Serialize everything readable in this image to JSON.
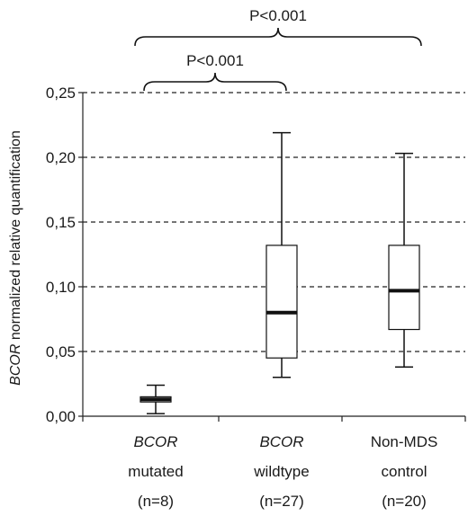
{
  "chart_data": {
    "type": "boxplot",
    "ylabel_italic": "BCOR",
    "ylabel_rest": " normalized relative quantification",
    "ylim": [
      0,
      0.25
    ],
    "yticks": [
      0,
      0.05,
      0.1,
      0.15,
      0.2,
      0.25
    ],
    "ytick_labels": [
      "0,00",
      "0,05",
      "0,10",
      "0,15",
      "0,20",
      "0,25"
    ],
    "grid": "dashed horizontal",
    "categories": [
      {
        "line1": "BCOR",
        "line1_italic": true,
        "line2": "mutated",
        "line3": "(n=8)"
      },
      {
        "line1": "BCOR",
        "line1_italic": true,
        "line2": "wildtype",
        "line3": "(n=27)"
      },
      {
        "line1": "Non-MDS",
        "line1_italic": false,
        "line2": "control",
        "line3": "(n=20)"
      }
    ],
    "boxes": [
      {
        "min": 0.002,
        "q1": 0.011,
        "median": 0.013,
        "q3": 0.015,
        "max": 0.024
      },
      {
        "min": 0.03,
        "q1": 0.045,
        "median": 0.08,
        "q3": 0.132,
        "max": 0.219
      },
      {
        "min": 0.038,
        "q1": 0.067,
        "median": 0.097,
        "q3": 0.132,
        "max": 0.203
      }
    ],
    "annotations": [
      {
        "label": "P<0.001",
        "from": 0,
        "to": 2,
        "level": "outer"
      },
      {
        "label": "P<0.001",
        "from": 0,
        "to": 1,
        "level": "inner"
      }
    ]
  }
}
